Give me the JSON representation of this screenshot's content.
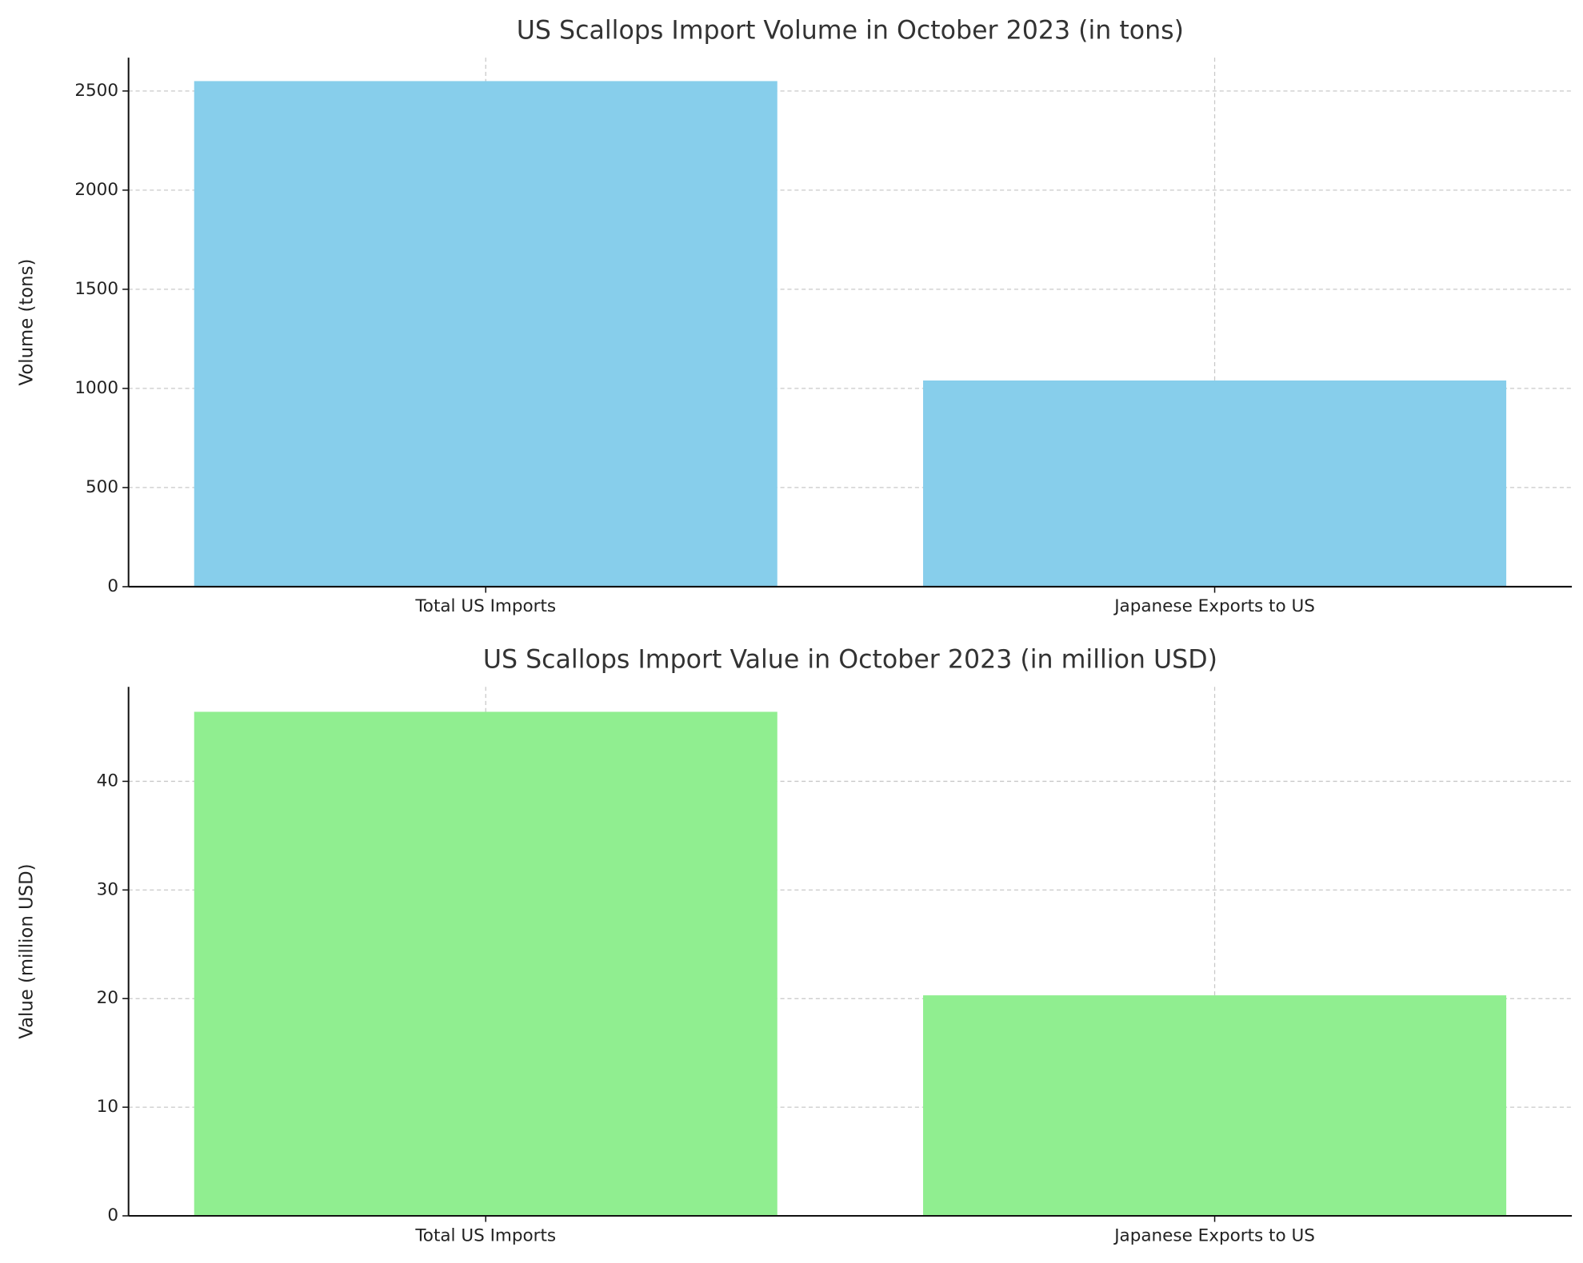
{
  "chart_data": [
    {
      "type": "bar",
      "title": "US Scallops Import Volume in October 2023 (in tons)",
      "y_label": "Volume (tons)",
      "categories": [
        "Total US Imports",
        "Japanese Exports to US"
      ],
      "values": [
        2550,
        1040
      ],
      "color": "#87ceeb",
      "ylim": [
        0,
        2668
      ],
      "yticks": [
        0,
        500,
        1000,
        1500,
        2000,
        2500
      ],
      "grid": true
    },
    {
      "type": "bar",
      "title": "US Scallops Import Value in October 2023 (in million USD)",
      "y_label": "Value (million USD)",
      "categories": [
        "Total US Imports",
        "Japanese Exports to US"
      ],
      "values": [
        46.4,
        20.3
      ],
      "color": "#90ee90",
      "ylim": [
        0,
        48.7
      ],
      "yticks": [
        0,
        10,
        20,
        30,
        40
      ],
      "grid": true
    }
  ]
}
